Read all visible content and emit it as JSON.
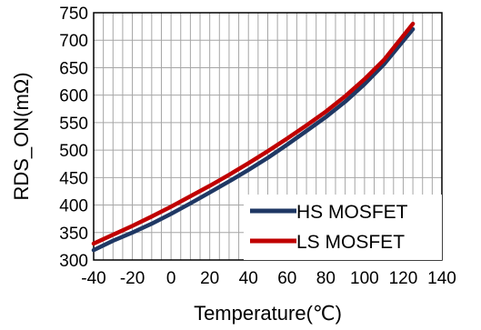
{
  "chart_data": {
    "type": "line",
    "xlabel": "Temperature(℃)",
    "ylabel": "RDS_ON(mΩ)",
    "xlim": [
      -40,
      140
    ],
    "ylim": [
      300,
      750
    ],
    "xticks": [
      -40,
      -20,
      0,
      20,
      40,
      60,
      80,
      100,
      120,
      140
    ],
    "yticks": [
      300,
      350,
      400,
      450,
      500,
      550,
      600,
      650,
      700,
      750
    ],
    "x_tick_labels": [
      "-40",
      "-20",
      "0",
      "20",
      "40",
      "60",
      "80",
      "100",
      "120",
      "140"
    ],
    "y_tick_labels": [
      "300",
      "350",
      "400",
      "450",
      "500",
      "550",
      "600",
      "650",
      "700",
      "750"
    ],
    "x_minor_step": 5,
    "grid": true,
    "legend_position": "bottom-right",
    "series": [
      {
        "name": "HS MOSFET",
        "color": "#1f3864",
        "x": [
          -40,
          -30,
          -20,
          -10,
          0,
          10,
          20,
          30,
          40,
          50,
          60,
          70,
          80,
          90,
          100,
          110,
          125
        ],
        "y": [
          318,
          335,
          350,
          366,
          384,
          403,
          423,
          443,
          464,
          486,
          510,
          535,
          560,
          588,
          620,
          656,
          720
        ]
      },
      {
        "name": "LS MOSFET",
        "color": "#c00000",
        "x": [
          -40,
          -30,
          -20,
          -10,
          0,
          10,
          20,
          30,
          40,
          50,
          60,
          70,
          80,
          90,
          100,
          110,
          125
        ],
        "y": [
          330,
          346,
          362,
          379,
          397,
          416,
          435,
          455,
          476,
          498,
          521,
          545,
          570,
          598,
          629,
          664,
          730
        ]
      }
    ]
  }
}
